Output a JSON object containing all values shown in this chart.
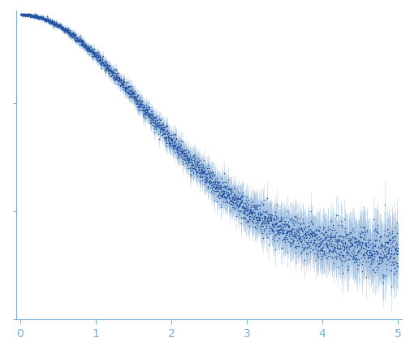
{
  "title": "",
  "xlabel": "",
  "ylabel": "",
  "xlim": [
    -0.05,
    5.05
  ],
  "ylim": [
    -0.005,
    0.075
  ],
  "x_ticks": [
    0,
    1,
    2,
    3,
    4,
    5
  ],
  "dot_color": "#1f4e9e",
  "error_color": "#a0bfdf",
  "axis_color": "#7aadd4",
  "tick_color": "#7aadd4",
  "background_color": "#ffffff",
  "dot_size": 1.2,
  "n_points": 3000,
  "seed": 42
}
